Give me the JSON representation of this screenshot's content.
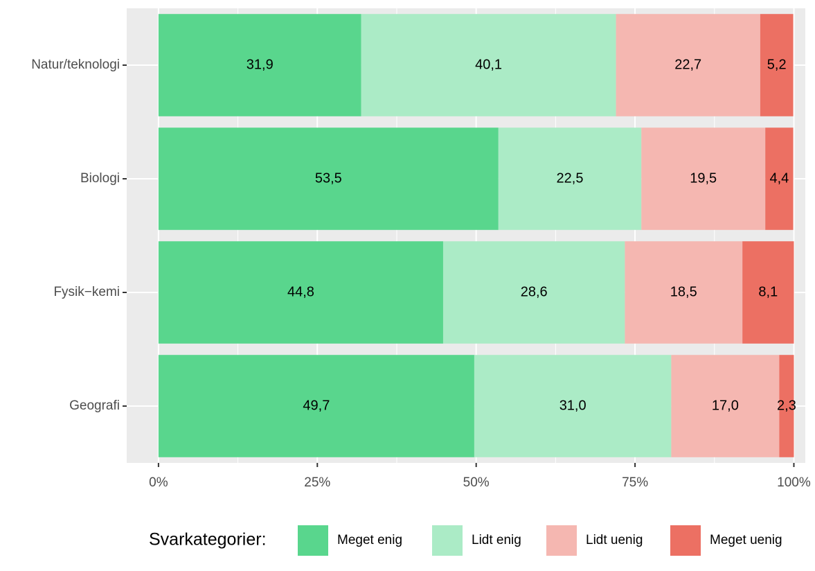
{
  "chart_data": {
    "type": "stacked-barh",
    "categories": [
      "Natur/teknologi",
      "Biologi",
      "Fysik−kemi",
      "Geografi"
    ],
    "series": [
      {
        "name": "Meget enig",
        "color": "#59d68d",
        "values": [
          31.9,
          53.5,
          44.8,
          49.7
        ],
        "value_labels": [
          "31,9",
          "53,5",
          "44,8",
          "49,7"
        ]
      },
      {
        "name": "Lidt enig",
        "color": "#abebc6",
        "values": [
          40.1,
          22.5,
          28.6,
          31.0
        ],
        "value_labels": [
          "40,1",
          "22,5",
          "28,6",
          "31,0"
        ]
      },
      {
        "name": "Lidt uenig",
        "color": "#f5b7b1",
        "values": [
          22.7,
          19.5,
          18.5,
          17.0
        ],
        "value_labels": [
          "22,7",
          "19,5",
          "18,5",
          "17,0"
        ]
      },
      {
        "name": "Meget uenig",
        "color": "#ec7063",
        "values": [
          5.2,
          4.4,
          8.1,
          2.3
        ],
        "value_labels": [
          "5,2",
          "4,4",
          "8,1",
          "2,3"
        ]
      }
    ],
    "xlim": [
      -5,
      101.8
    ],
    "xticks": [
      {
        "value": 0,
        "label": "0%"
      },
      {
        "value": 25,
        "label": "25%"
      },
      {
        "value": 50,
        "label": "50%"
      },
      {
        "value": 75,
        "label": "75%"
      },
      {
        "value": 100,
        "label": "100%"
      }
    ],
    "legend_title": "Svarkategorier:",
    "legend": "bottom",
    "grid": true
  }
}
